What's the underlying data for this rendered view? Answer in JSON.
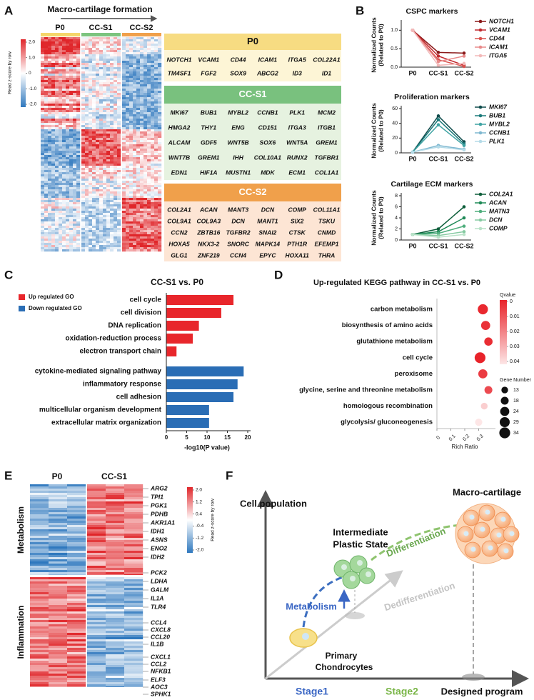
{
  "panel_labels": [
    "A",
    "B",
    "C",
    "D",
    "E",
    "F"
  ],
  "panel_a": {
    "title": "Macro-cartilage formation",
    "columns": [
      "P0",
      "CC-S1",
      "CC-S2"
    ],
    "colorbar": {
      "label": "Read z-score by row",
      "ticks": [
        {
          "value": 2,
          "label": "2.0"
        },
        {
          "value": 1,
          "label": "1.0"
        },
        0,
        {
          "value": -1,
          "label": "-1.0"
        },
        {
          "value": -2,
          "label": "-2.0"
        }
      ]
    },
    "gene_groups": [
      {
        "name": "P0",
        "rows": [
          [
            "NOTCH1",
            "VCAM1",
            "CD44",
            "ICAM1",
            "ITGA5",
            "COL22A1"
          ],
          [
            "TM4SF1",
            "FGF2",
            "SOX9",
            "ABCG2",
            "ID3",
            "ID1"
          ]
        ]
      },
      {
        "name": "CC-S1",
        "rows": [
          [
            "MKI67",
            "BUB1",
            "MYBL2",
            "CCNB1",
            "PLK1",
            "MCM2"
          ],
          [
            "HMGA2",
            "THY1",
            "ENG",
            "CD151",
            "ITGA3",
            "ITGB1"
          ],
          [
            "ALCAM",
            "GDF5",
            "WNT5B",
            "SOX6",
            "WNT5A",
            "GREM1"
          ],
          [
            "WNT7B",
            "GREM1",
            "IHH",
            "COL10A1",
            "RUNX2",
            "TGFBR1"
          ],
          [
            "EDN1",
            "HIF1A",
            "MUSTN1",
            "MDK",
            "ECM1",
            "COL1A1"
          ]
        ]
      },
      {
        "name": "CC-S2",
        "rows": [
          [
            "COL2A1",
            "ACAN",
            "MANT3",
            "DCN",
            "COMP",
            "COL11A1"
          ],
          [
            "COL9A1",
            "COL9A3",
            "DCN",
            "MANT1",
            "SIX2",
            "TSKU"
          ],
          [
            "CCN2",
            "ZBTB16",
            "TGFBR2",
            "SNAI2",
            "CTSK",
            "CNMD"
          ],
          [
            "HOXA5",
            "NKX3-2",
            "SNORC",
            "MAPK14",
            "PTH1R",
            "EFEMP1"
          ],
          [
            "GLG1",
            "ZNF219",
            "CCN4",
            "EPYC",
            "HOXA11",
            "THRA"
          ]
        ]
      }
    ]
  },
  "chart_data": [
    {
      "type": "line",
      "title": "CSPC markers",
      "ylabel": [
        "Normalized Counts",
        "(Related to P0)"
      ],
      "categories": [
        "P0",
        "CC-S1",
        "CC-S2"
      ],
      "ylim": [
        0,
        1.2
      ],
      "yticks": [
        {
          "value": 0,
          "label": "0.0"
        },
        {
          "value": 0.5,
          "label": "0.5"
        },
        {
          "value": 1,
          "label": "1.0"
        }
      ],
      "series": [
        {
          "name": "NOTCH1",
          "color": "#8b1a1a",
          "values": [
            1,
            0.4,
            0.38
          ]
        },
        {
          "name": "VCAM1",
          "color": "#c0282d",
          "values": [
            1,
            0.3,
            0.05
          ]
        },
        {
          "name": "CD44",
          "color": "#d9534f",
          "values": [
            1,
            0.2,
            0.02
          ]
        },
        {
          "name": "ICAM1",
          "color": "#e88a8a",
          "values": [
            1,
            0.15,
            0.3
          ]
        },
        {
          "name": "ITGA5",
          "color": "#f2b8b8",
          "values": [
            1,
            0.05,
            0.1
          ]
        }
      ]
    },
    {
      "type": "line",
      "title": "Proliferation markers",
      "ylabel": [
        "Normalized Counts",
        "(Related to P0)"
      ],
      "categories": [
        "P0",
        "CC-S1",
        "CC-S2"
      ],
      "ylim": [
        0,
        60
      ],
      "yticks": [
        0,
        20,
        40,
        60
      ],
      "series": [
        {
          "name": "MKI67",
          "color": "#0f4c4c",
          "values": [
            1,
            50,
            15
          ]
        },
        {
          "name": "BUB1",
          "color": "#1b7a7a",
          "values": [
            1,
            45,
            12
          ]
        },
        {
          "name": "MYBL2",
          "color": "#3fa3a3",
          "values": [
            1,
            38,
            10
          ]
        },
        {
          "name": "CCNB1",
          "color": "#7fb8d0",
          "values": [
            1,
            10,
            5
          ]
        },
        {
          "name": "PLK1",
          "color": "#b5dbe8",
          "values": [
            1,
            8,
            4
          ]
        }
      ]
    },
    {
      "type": "line",
      "title": "Cartilage ECM markers",
      "ylabel": [
        "Normalized Counts",
        "(Related to P0)"
      ],
      "categories": [
        "P0",
        "CC-S1",
        "CC-S2"
      ],
      "ylim": [
        0,
        8
      ],
      "yticks": [
        0,
        2,
        4,
        6,
        8
      ],
      "series": [
        {
          "name": "COL2A1",
          "color": "#0d5e3a",
          "values": [
            1,
            2,
            6
          ]
        },
        {
          "name": "ACAN",
          "color": "#1f8a57",
          "values": [
            1,
            1.5,
            4
          ]
        },
        {
          "name": "MATN3",
          "color": "#4fae7d",
          "values": [
            1,
            1.2,
            2.5
          ]
        },
        {
          "name": "DCN",
          "color": "#86caa2",
          "values": [
            1,
            0.8,
            1.5
          ]
        },
        {
          "name": "COMP",
          "color": "#b9e2c8",
          "values": [
            1,
            0.5,
            1
          ]
        }
      ]
    },
    {
      "type": "bar",
      "title": "CC-S1 vs. P0",
      "xlabel": "-log10(P value)",
      "xlim": [
        0,
        20
      ],
      "xticks": [
        0,
        5,
        10,
        15,
        20
      ],
      "series": [
        {
          "name": "Up regulated GO",
          "color": "#e8262b",
          "categories": [
            "cell cycle",
            "cell division",
            "DNA replication",
            "oxidation-reduction process",
            "electron transport chain"
          ],
          "values": [
            16.5,
            13.5,
            8,
            6.5,
            2.5
          ]
        },
        {
          "name": "Down regulated GO",
          "color": "#2a6db5",
          "categories": [
            "cytokine-mediated signaling pathway",
            "inflammatory response",
            "cell adhesion",
            "multicellular organism development",
            "extracellular matrix organization"
          ],
          "values": [
            19,
            17.5,
            16.5,
            10.5,
            10.5
          ]
        }
      ]
    },
    {
      "type": "scatter",
      "title": "Up-regulated KEGG pathway in CC-S1 vs. P0",
      "xlabel": "Rich Ratio",
      "categories": [
        "carbon metabolism",
        "biosynthesis of amino acids",
        "glutathione metabolism",
        "cell cycle",
        "peroxisome",
        "glycine, serine and threonine metabolism",
        "homologous recombination",
        "glycolysis/ gluconeogenesis"
      ],
      "values": [
        0.33,
        0.35,
        0.37,
        0.31,
        0.33,
        0.37,
        0.34,
        0.3
      ],
      "qvalue": [
        0.001,
        0.003,
        0.002,
        0,
        0.005,
        0.008,
        0.035,
        0.04
      ],
      "gene_number": [
        30,
        24,
        20,
        34,
        24,
        18,
        13,
        15
      ],
      "xlim": [
        0,
        0.4
      ],
      "xticks": [
        0,
        0.1,
        0.2,
        0.3
      ],
      "color_legend": {
        "title": "Qvalue",
        "ticks": [
          0,
          0.01,
          0.02,
          0.03,
          0.04
        ]
      },
      "size_legend": {
        "title": "Gene Number",
        "values": [
          13,
          18,
          24,
          29,
          34
        ]
      }
    }
  ],
  "panel_e": {
    "columns": [
      "P0",
      "CC-S1"
    ],
    "colorbar": {
      "label": "Read z-score by row",
      "ticks": [
        {
          "value": 2,
          "label": "2.0"
        },
        {
          "value": 1.2,
          "label": "1.2"
        },
        {
          "value": 0.4,
          "label": "0.4"
        },
        {
          "value": -0.4,
          "label": "-0.4"
        },
        {
          "value": -1.2,
          "label": "-1.2"
        },
        {
          "value": -2,
          "label": "-2.0"
        }
      ]
    },
    "groups": [
      {
        "name": "Metabolism",
        "genes": [
          "ARG2",
          "TPI1",
          "PGK1",
          "PDHB",
          "AKR1A1",
          "IDH1",
          "ASNS",
          "ENO2",
          "IDH2",
          "PCK2",
          "LDHA",
          "GALM"
        ]
      },
      {
        "name": "Inflammation",
        "genes": [
          "IL1A",
          "TLR4",
          "CCL4",
          "CXCL8",
          "CCL20",
          "IL1B",
          "CXCL1",
          "CCL2",
          "NFKB1",
          "ELF3",
          "AOC3",
          "SPHK1"
        ]
      }
    ]
  },
  "panel_f": {
    "y_axis_label": "Cell population",
    "primary": [
      "Primary",
      "Chondrocytes"
    ],
    "intermediate": [
      "Intermediate",
      "Plastic State"
    ],
    "macro": "Macro-cartilage",
    "processes": [
      "Metabolism",
      "Differentiation",
      "Dedifferentiation"
    ],
    "stages": [
      "Stage1",
      "Stage2",
      "Designed program"
    ]
  }
}
